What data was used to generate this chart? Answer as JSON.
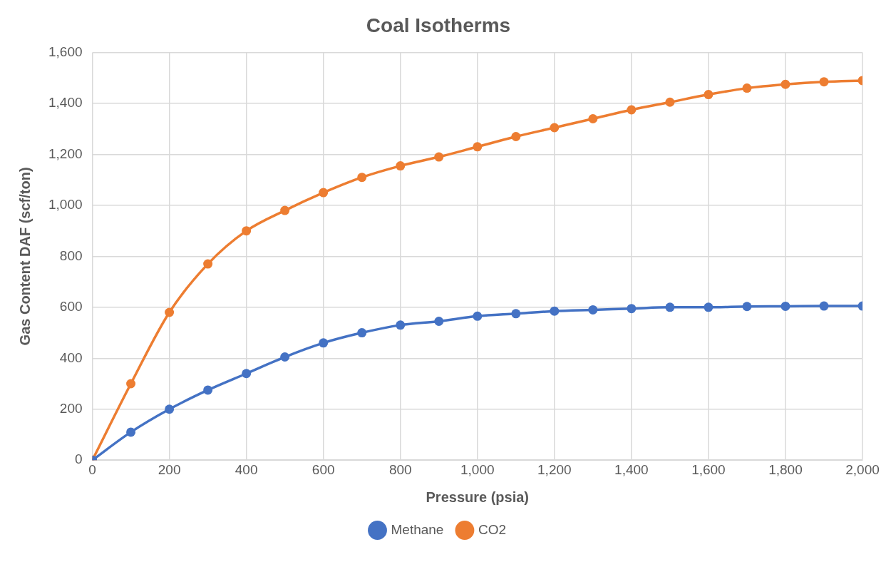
{
  "chart_data": {
    "type": "line",
    "title": "Coal Isotherms",
    "xlabel": "Pressure (psia)",
    "ylabel": "Gas Content DAF (scf/ton)",
    "x": [
      0,
      100,
      200,
      300,
      400,
      500,
      600,
      700,
      800,
      900,
      1000,
      1100,
      1200,
      1300,
      1400,
      1500,
      1600,
      1700,
      1800,
      1900,
      2000
    ],
    "series": [
      {
        "name": "Methane",
        "color": "#4472c4",
        "values": [
          0,
          110,
          200,
          275,
          340,
          405,
          460,
          500,
          530,
          545,
          565,
          575,
          585,
          590,
          595,
          600,
          600,
          603,
          604,
          605,
          605
        ]
      },
      {
        "name": "CO2",
        "color": "#ed7d31",
        "values": [
          0,
          300,
          580,
          770,
          900,
          980,
          1050,
          1110,
          1155,
          1190,
          1230,
          1270,
          1305,
          1340,
          1375,
          1405,
          1435,
          1460,
          1475,
          1485,
          1490
        ]
      }
    ],
    "xlim": [
      0,
      2000
    ],
    "xticks": [
      0,
      200,
      400,
      600,
      800,
      {
        "value": 1000,
        "label": "1,000"
      },
      {
        "value": 1200,
        "label": "1,200"
      },
      {
        "value": 1400,
        "label": "1,400"
      },
      {
        "value": 1600,
        "label": "1,600"
      },
      {
        "value": 1800,
        "label": "1,800"
      },
      {
        "value": 2000,
        "label": "2,000"
      }
    ],
    "ylim": [
      0,
      1600
    ],
    "yticks": [
      0,
      200,
      400,
      600,
      800,
      {
        "value": 1000,
        "label": "1,000"
      },
      {
        "value": 1200,
        "label": "1,200"
      },
      {
        "value": 1400,
        "label": "1,400"
      },
      {
        "value": 1600,
        "label": "1,600"
      }
    ],
    "grid": true,
    "legend": "bottom",
    "marker": "circle",
    "line_style": "solid"
  }
}
